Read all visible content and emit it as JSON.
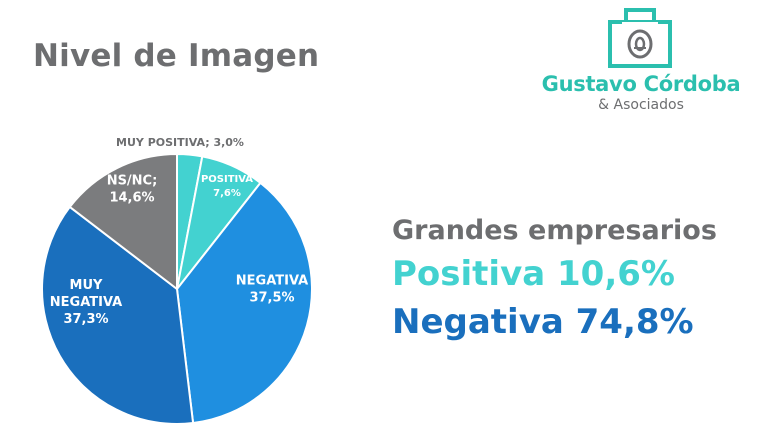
{
  "page_title": "Nivel de Imagen",
  "logo": {
    "name": "Gustavo Córdoba",
    "sub": "& Asociados",
    "color": "#2bbfae"
  },
  "chart_data": {
    "type": "pie",
    "title": "",
    "slices": [
      {
        "label_lines": [
          "MUY POSITIVA; 3,0%"
        ],
        "value": 3.0,
        "color": "#43d2d0"
      },
      {
        "label_lines": [
          "POSITIVA",
          "7,6%"
        ],
        "value": 7.6,
        "color": "#43d2d0"
      },
      {
        "label_lines": [
          "NEGATIVA",
          "37,5%"
        ],
        "value": 37.5,
        "color": "#1f8fe0"
      },
      {
        "label_lines": [
          "MUY",
          "NEGATIVA",
          "37,3%"
        ],
        "value": 37.3,
        "color": "#1a6fbd"
      },
      {
        "label_lines": [
          "NS/NC;",
          "14,6%"
        ],
        "value": 14.6,
        "color": "#7b7c7e"
      }
    ]
  },
  "summary": {
    "group": "Grandes empresarios",
    "positive": "Positiva 10,6%",
    "negative": "Negativa 74,8%"
  }
}
